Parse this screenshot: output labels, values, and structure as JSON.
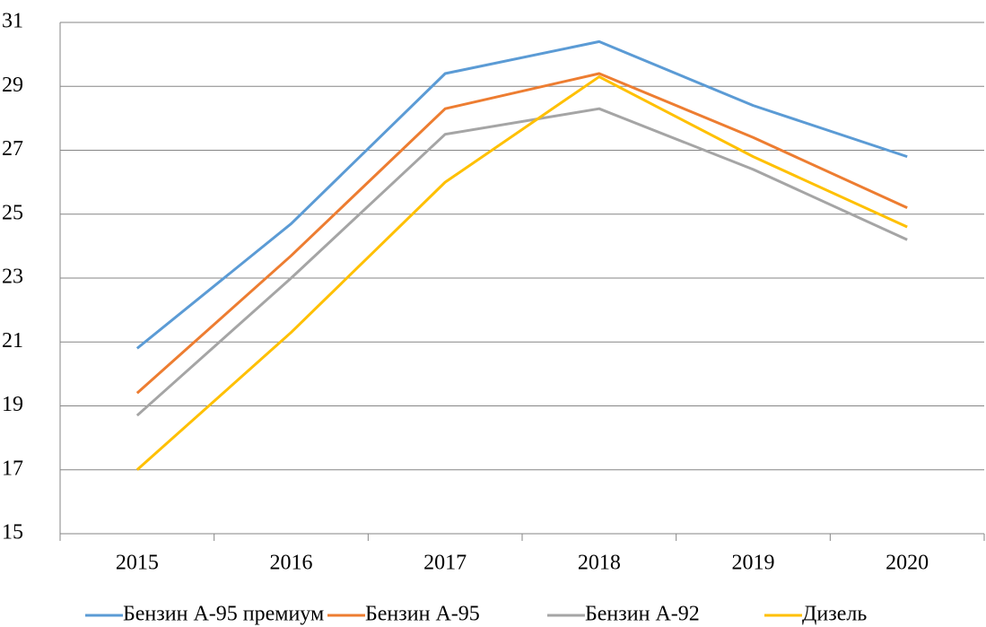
{
  "chart_data": {
    "type": "line",
    "categories": [
      "2015",
      "2016",
      "2017",
      "2018",
      "2019",
      "2020"
    ],
    "series": [
      {
        "name": "Бензин А-95 премиум",
        "color": "#5b9bd5",
        "values": [
          20.8,
          24.7,
          29.4,
          30.4,
          28.4,
          26.8
        ]
      },
      {
        "name": "Бензин А-95",
        "color": "#ed7d31",
        "values": [
          19.4,
          23.7,
          28.3,
          29.4,
          27.4,
          25.2
        ]
      },
      {
        "name": "Бензин А-92",
        "color": "#a5a5a5",
        "values": [
          18.7,
          23.0,
          27.5,
          28.3,
          26.4,
          24.2
        ]
      },
      {
        "name": "Дизель",
        "color": "#ffc000",
        "values": [
          17.0,
          21.3,
          26.0,
          29.3,
          26.8,
          24.6
        ]
      }
    ],
    "ylim": [
      15,
      31
    ],
    "yticks": [
      15,
      17,
      19,
      21,
      23,
      25,
      27,
      29,
      31
    ],
    "grid": true,
    "legend": "bottom"
  }
}
